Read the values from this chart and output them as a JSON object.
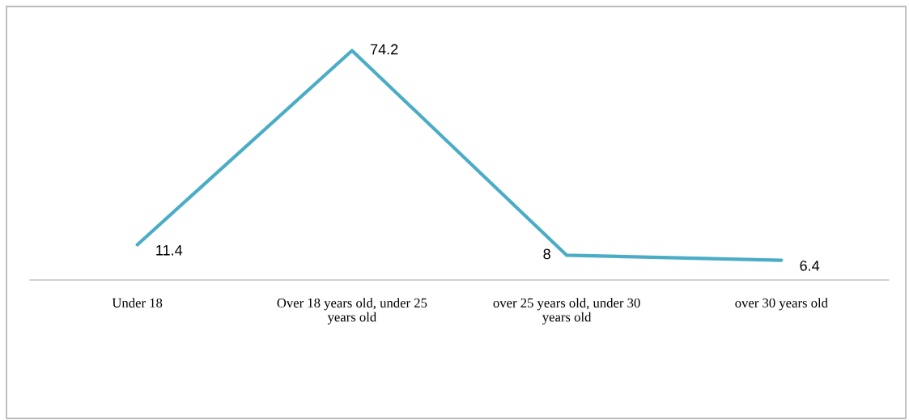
{
  "chart_data": {
    "type": "line",
    "categories": [
      "Under 18",
      "Over 18 years old, under 25 years old",
      "over 25 years old, under 30 years old",
      "over 30 years old"
    ],
    "series": [
      {
        "color": "#4bacc6",
        "values": [
          11.4,
          74.2,
          8,
          6.4
        ]
      }
    ],
    "data_labels": true,
    "marker": "none",
    "line_style": "solid",
    "tick_labels": "x"
  }
}
